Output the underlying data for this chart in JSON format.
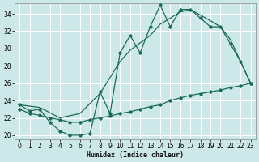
{
  "bg_color": "#cde8e8",
  "grid_color": "#b8d8d8",
  "line_color": "#1a6b5a",
  "xlabel": "Humidex (Indice chaleur)",
  "xlim": [
    -0.5,
    23.5
  ],
  "ylim": [
    19.5,
    35.2
  ],
  "xticks": [
    0,
    1,
    2,
    3,
    4,
    5,
    6,
    7,
    8,
    9,
    10,
    11,
    12,
    13,
    14,
    15,
    16,
    17,
    18,
    19,
    20,
    21,
    22,
    23
  ],
  "yticks": [
    20,
    22,
    24,
    26,
    28,
    30,
    32,
    34
  ],
  "zigzag_x": [
    0,
    1,
    2,
    3,
    4,
    5,
    6,
    7,
    8,
    9,
    10,
    11,
    12,
    13,
    14,
    15,
    16,
    17,
    18,
    19,
    20,
    21,
    22,
    23
  ],
  "zigzag_y": [
    23.5,
    22.8,
    23.0,
    21.5,
    20.5,
    20.0,
    20.0,
    20.2,
    25.0,
    22.5,
    29.5,
    31.5,
    29.5,
    32.5,
    35.0,
    32.5,
    34.5,
    34.5,
    33.5,
    32.5,
    32.5,
    30.5,
    28.5,
    26.0
  ],
  "upper_x": [
    0,
    2,
    4,
    6,
    8,
    10,
    11,
    13,
    14,
    16,
    17,
    19,
    20,
    21,
    22,
    23
  ],
  "upper_y": [
    23.5,
    23.2,
    22.0,
    22.5,
    24.8,
    28.5,
    29.8,
    31.5,
    32.8,
    34.2,
    34.5,
    33.2,
    32.5,
    31.0,
    28.5,
    26.0
  ],
  "lower_x": [
    0,
    1,
    2,
    3,
    4,
    5,
    6,
    7,
    8,
    9,
    10,
    11,
    12,
    13,
    14,
    15,
    16,
    17,
    18,
    19,
    20,
    21,
    22,
    23
  ],
  "lower_y": [
    23.0,
    22.5,
    22.3,
    22.0,
    21.8,
    21.5,
    21.5,
    21.8,
    22.0,
    22.2,
    22.5,
    22.7,
    23.0,
    23.3,
    23.5,
    24.0,
    24.3,
    24.6,
    24.8,
    25.0,
    25.2,
    25.5,
    25.7,
    26.0
  ]
}
